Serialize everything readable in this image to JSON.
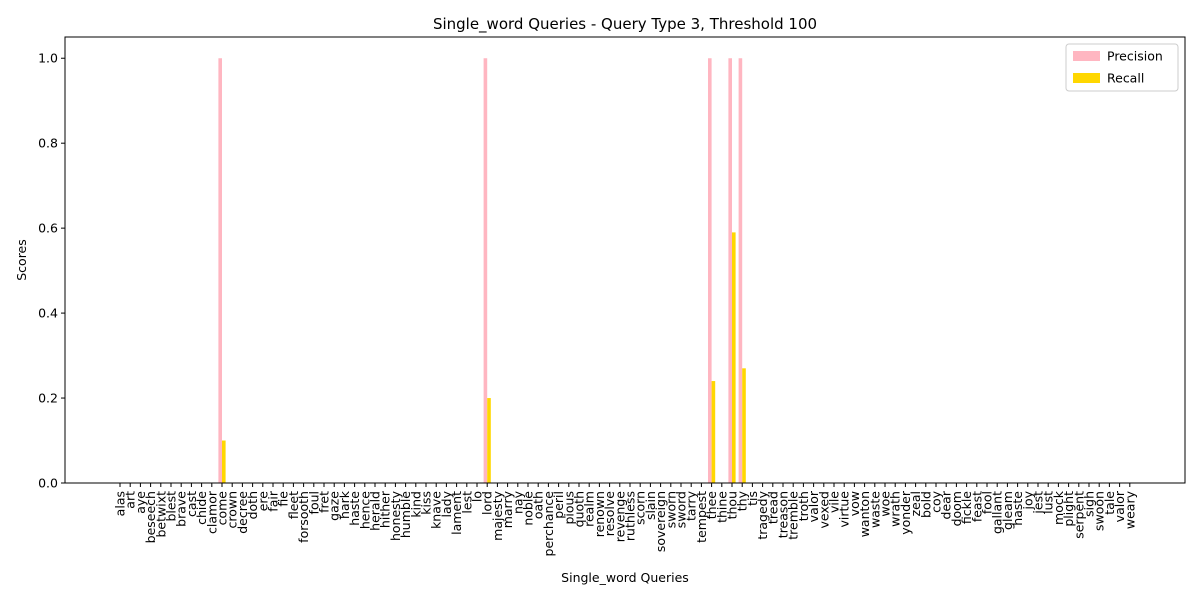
{
  "chart_data": {
    "type": "bar",
    "title": "Single_word Queries - Query Type 3, Threshold 100",
    "x_label": "Single_word Queries",
    "y_label": "Scores",
    "categories": [
      "alas",
      "art",
      "aye",
      "beseech",
      "betwixt",
      "blest",
      "brave",
      "cast",
      "chide",
      "clamor",
      "come",
      "crown",
      "decree",
      "doth",
      "ere",
      "fair",
      "fie",
      "fleet",
      "forsooth",
      "foul",
      "fret",
      "gaze",
      "hark",
      "haste",
      "hence",
      "herald",
      "hither",
      "honesty",
      "humble",
      "kind",
      "kiss",
      "knave",
      "lady",
      "lament",
      "lest",
      "lo",
      "lord",
      "majesty",
      "marry",
      "nay",
      "noble",
      "oath",
      "perchance",
      "peril",
      "pious",
      "quoth",
      "realm",
      "renown",
      "resolve",
      "revenge",
      "ruthless",
      "scorn",
      "slain",
      "sovereign",
      "sworn",
      "sword",
      "tarry",
      "tempest",
      "thee",
      "thine",
      "thou",
      "thy",
      "tis",
      "tragedy",
      "tread",
      "treason",
      "tremble",
      "troth",
      "valor",
      "vexed",
      "vile",
      "virtue",
      "vow",
      "wanton",
      "waste",
      "woe",
      "wrath",
      "yonder",
      "zeal",
      "bold",
      "coy",
      "dear",
      "doom",
      "fickle",
      "feast",
      "fool",
      "gallant",
      "gleam",
      "haste",
      "joy",
      "jest",
      "lust",
      "mock",
      "plight",
      "serpent",
      "sigh",
      "swoon",
      "tale",
      "valor",
      "weary"
    ],
    "series": [
      {
        "name": "Precision",
        "color": "#ffb6c1",
        "values": [
          0,
          0,
          0,
          0,
          0,
          0,
          0,
          0,
          0,
          0,
          1,
          0,
          0,
          0,
          0,
          0,
          0,
          0,
          0,
          0,
          0,
          0,
          0,
          0,
          0,
          0,
          0,
          0,
          0,
          0,
          0,
          0,
          0,
          0,
          0,
          0,
          1,
          0,
          0,
          0,
          0,
          0,
          0,
          0,
          0,
          0,
          0,
          0,
          0,
          0,
          0,
          0,
          0,
          0,
          0,
          0,
          0,
          0,
          1,
          0,
          1,
          1,
          0,
          0,
          0,
          0,
          0,
          0,
          0,
          0,
          0,
          0,
          0,
          0,
          0,
          0,
          0,
          0,
          0,
          0,
          0,
          0,
          0,
          0,
          0,
          0,
          0,
          0,
          0,
          0,
          0,
          0,
          0,
          0,
          0,
          0,
          0,
          0,
          0,
          0
        ]
      },
      {
        "name": "Recall",
        "color": "#ffd700",
        "values": [
          0,
          0,
          0,
          0,
          0,
          0,
          0,
          0,
          0,
          0,
          0.1,
          0,
          0,
          0,
          0,
          0,
          0,
          0,
          0,
          0,
          0,
          0,
          0,
          0,
          0,
          0,
          0,
          0,
          0,
          0,
          0,
          0,
          0,
          0,
          0,
          0,
          0.2,
          0,
          0,
          0,
          0,
          0,
          0,
          0,
          0,
          0,
          0,
          0,
          0,
          0,
          0,
          0,
          0,
          0,
          0,
          0,
          0,
          0,
          0.24,
          0,
          0.59,
          0.27,
          0,
          0,
          0,
          0,
          0,
          0,
          0,
          0,
          0,
          0,
          0,
          0,
          0,
          0,
          0,
          0,
          0,
          0,
          0,
          0,
          0,
          0,
          0,
          0,
          0,
          0,
          0,
          0,
          0,
          0,
          0,
          0,
          0,
          0,
          0,
          0,
          0,
          0
        ]
      }
    ],
    "ylim": [
      0,
      1.05
    ],
    "yticks": [
      {
        "value": 0,
        "label": "0.0"
      },
      {
        "value": 0.2,
        "label": "0.2"
      },
      {
        "value": 0.4,
        "label": "0.4"
      },
      {
        "value": 0.6,
        "label": "0.6"
      },
      {
        "value": 0.8,
        "label": "0.8"
      },
      {
        "value": 1,
        "label": "1.0"
      }
    ],
    "legend": "upper right"
  }
}
